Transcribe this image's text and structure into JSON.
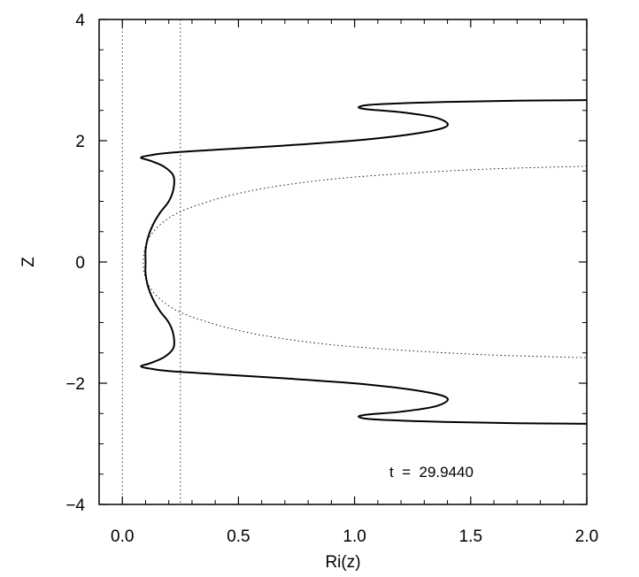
{
  "chart_data": {
    "type": "line",
    "title": "",
    "xlabel": "Ri(z)",
    "ylabel": "Z",
    "xlim": [
      -0.1,
      2.0
    ],
    "ylim": [
      -4,
      4
    ],
    "x_ticks": [
      {
        "value": 0.0,
        "label": "0.0"
      },
      {
        "value": 0.5,
        "label": "0.5"
      },
      {
        "value": 1.0,
        "label": "1.0"
      },
      {
        "value": 1.5,
        "label": "1.5"
      },
      {
        "value": 2.0,
        "label": "2.0"
      }
    ],
    "y_ticks": [
      {
        "value": -4,
        "label": "−4"
      },
      {
        "value": -2,
        "label": "−2"
      },
      {
        "value": 0,
        "label": "0"
      },
      {
        "value": 2,
        "label": "2"
      },
      {
        "value": 4,
        "label": "4"
      }
    ],
    "reference_lines": [
      {
        "x": 0.0,
        "style": "dotted"
      },
      {
        "x": 0.25,
        "style": "dotted"
      }
    ],
    "annotation": "t  =  29.9440",
    "grid": false,
    "series": [
      {
        "style": "solid",
        "points": [
          [
            2.0,
            2.67
          ],
          [
            1.7,
            2.66
          ],
          [
            1.4,
            2.64
          ],
          [
            1.1,
            2.6
          ],
          [
            1.02,
            2.56
          ],
          [
            1.05,
            2.52
          ],
          [
            1.2,
            2.47
          ],
          [
            1.35,
            2.38
          ],
          [
            1.4,
            2.25
          ],
          [
            1.3,
            2.14
          ],
          [
            1.05,
            2.02
          ],
          [
            0.7,
            1.92
          ],
          [
            0.4,
            1.85
          ],
          [
            0.2,
            1.8
          ],
          [
            0.12,
            1.76
          ],
          [
            0.08,
            1.72
          ],
          [
            0.12,
            1.67
          ],
          [
            0.18,
            1.57
          ],
          [
            0.22,
            1.42
          ],
          [
            0.22,
            1.2
          ],
          [
            0.2,
            1.0
          ],
          [
            0.16,
            0.8
          ],
          [
            0.13,
            0.6
          ],
          [
            0.11,
            0.4
          ],
          [
            0.1,
            0.2
          ],
          [
            0.1,
            0.0
          ],
          [
            0.1,
            -0.2
          ],
          [
            0.11,
            -0.4
          ],
          [
            0.13,
            -0.6
          ],
          [
            0.16,
            -0.8
          ],
          [
            0.2,
            -1.0
          ],
          [
            0.22,
            -1.2
          ],
          [
            0.22,
            -1.42
          ],
          [
            0.18,
            -1.57
          ],
          [
            0.12,
            -1.67
          ],
          [
            0.08,
            -1.72
          ],
          [
            0.12,
            -1.76
          ],
          [
            0.2,
            -1.8
          ],
          [
            0.4,
            -1.85
          ],
          [
            0.7,
            -1.92
          ],
          [
            1.05,
            -2.02
          ],
          [
            1.3,
            -2.14
          ],
          [
            1.4,
            -2.25
          ],
          [
            1.35,
            -2.38
          ],
          [
            1.2,
            -2.47
          ],
          [
            1.05,
            -2.52
          ],
          [
            1.02,
            -2.56
          ],
          [
            1.1,
            -2.6
          ],
          [
            1.4,
            -2.64
          ],
          [
            1.7,
            -2.66
          ],
          [
            2.0,
            -2.67
          ]
        ]
      },
      {
        "style": "dotted",
        "points": [
          [
            2.0,
            1.58
          ],
          [
            1.5,
            1.52
          ],
          [
            1.0,
            1.4
          ],
          [
            0.7,
            1.27
          ],
          [
            0.5,
            1.13
          ],
          [
            0.35,
            0.97
          ],
          [
            0.25,
            0.83
          ],
          [
            0.18,
            0.67
          ],
          [
            0.13,
            0.48
          ],
          [
            0.1,
            0.27
          ],
          [
            0.09,
            0.0
          ],
          [
            0.1,
            -0.27
          ],
          [
            0.13,
            -0.48
          ],
          [
            0.18,
            -0.67
          ],
          [
            0.25,
            -0.83
          ],
          [
            0.35,
            -0.97
          ],
          [
            0.5,
            -1.13
          ],
          [
            0.7,
            -1.27
          ],
          [
            1.0,
            -1.4
          ],
          [
            1.5,
            -1.52
          ],
          [
            2.0,
            -1.58
          ]
        ]
      }
    ]
  }
}
